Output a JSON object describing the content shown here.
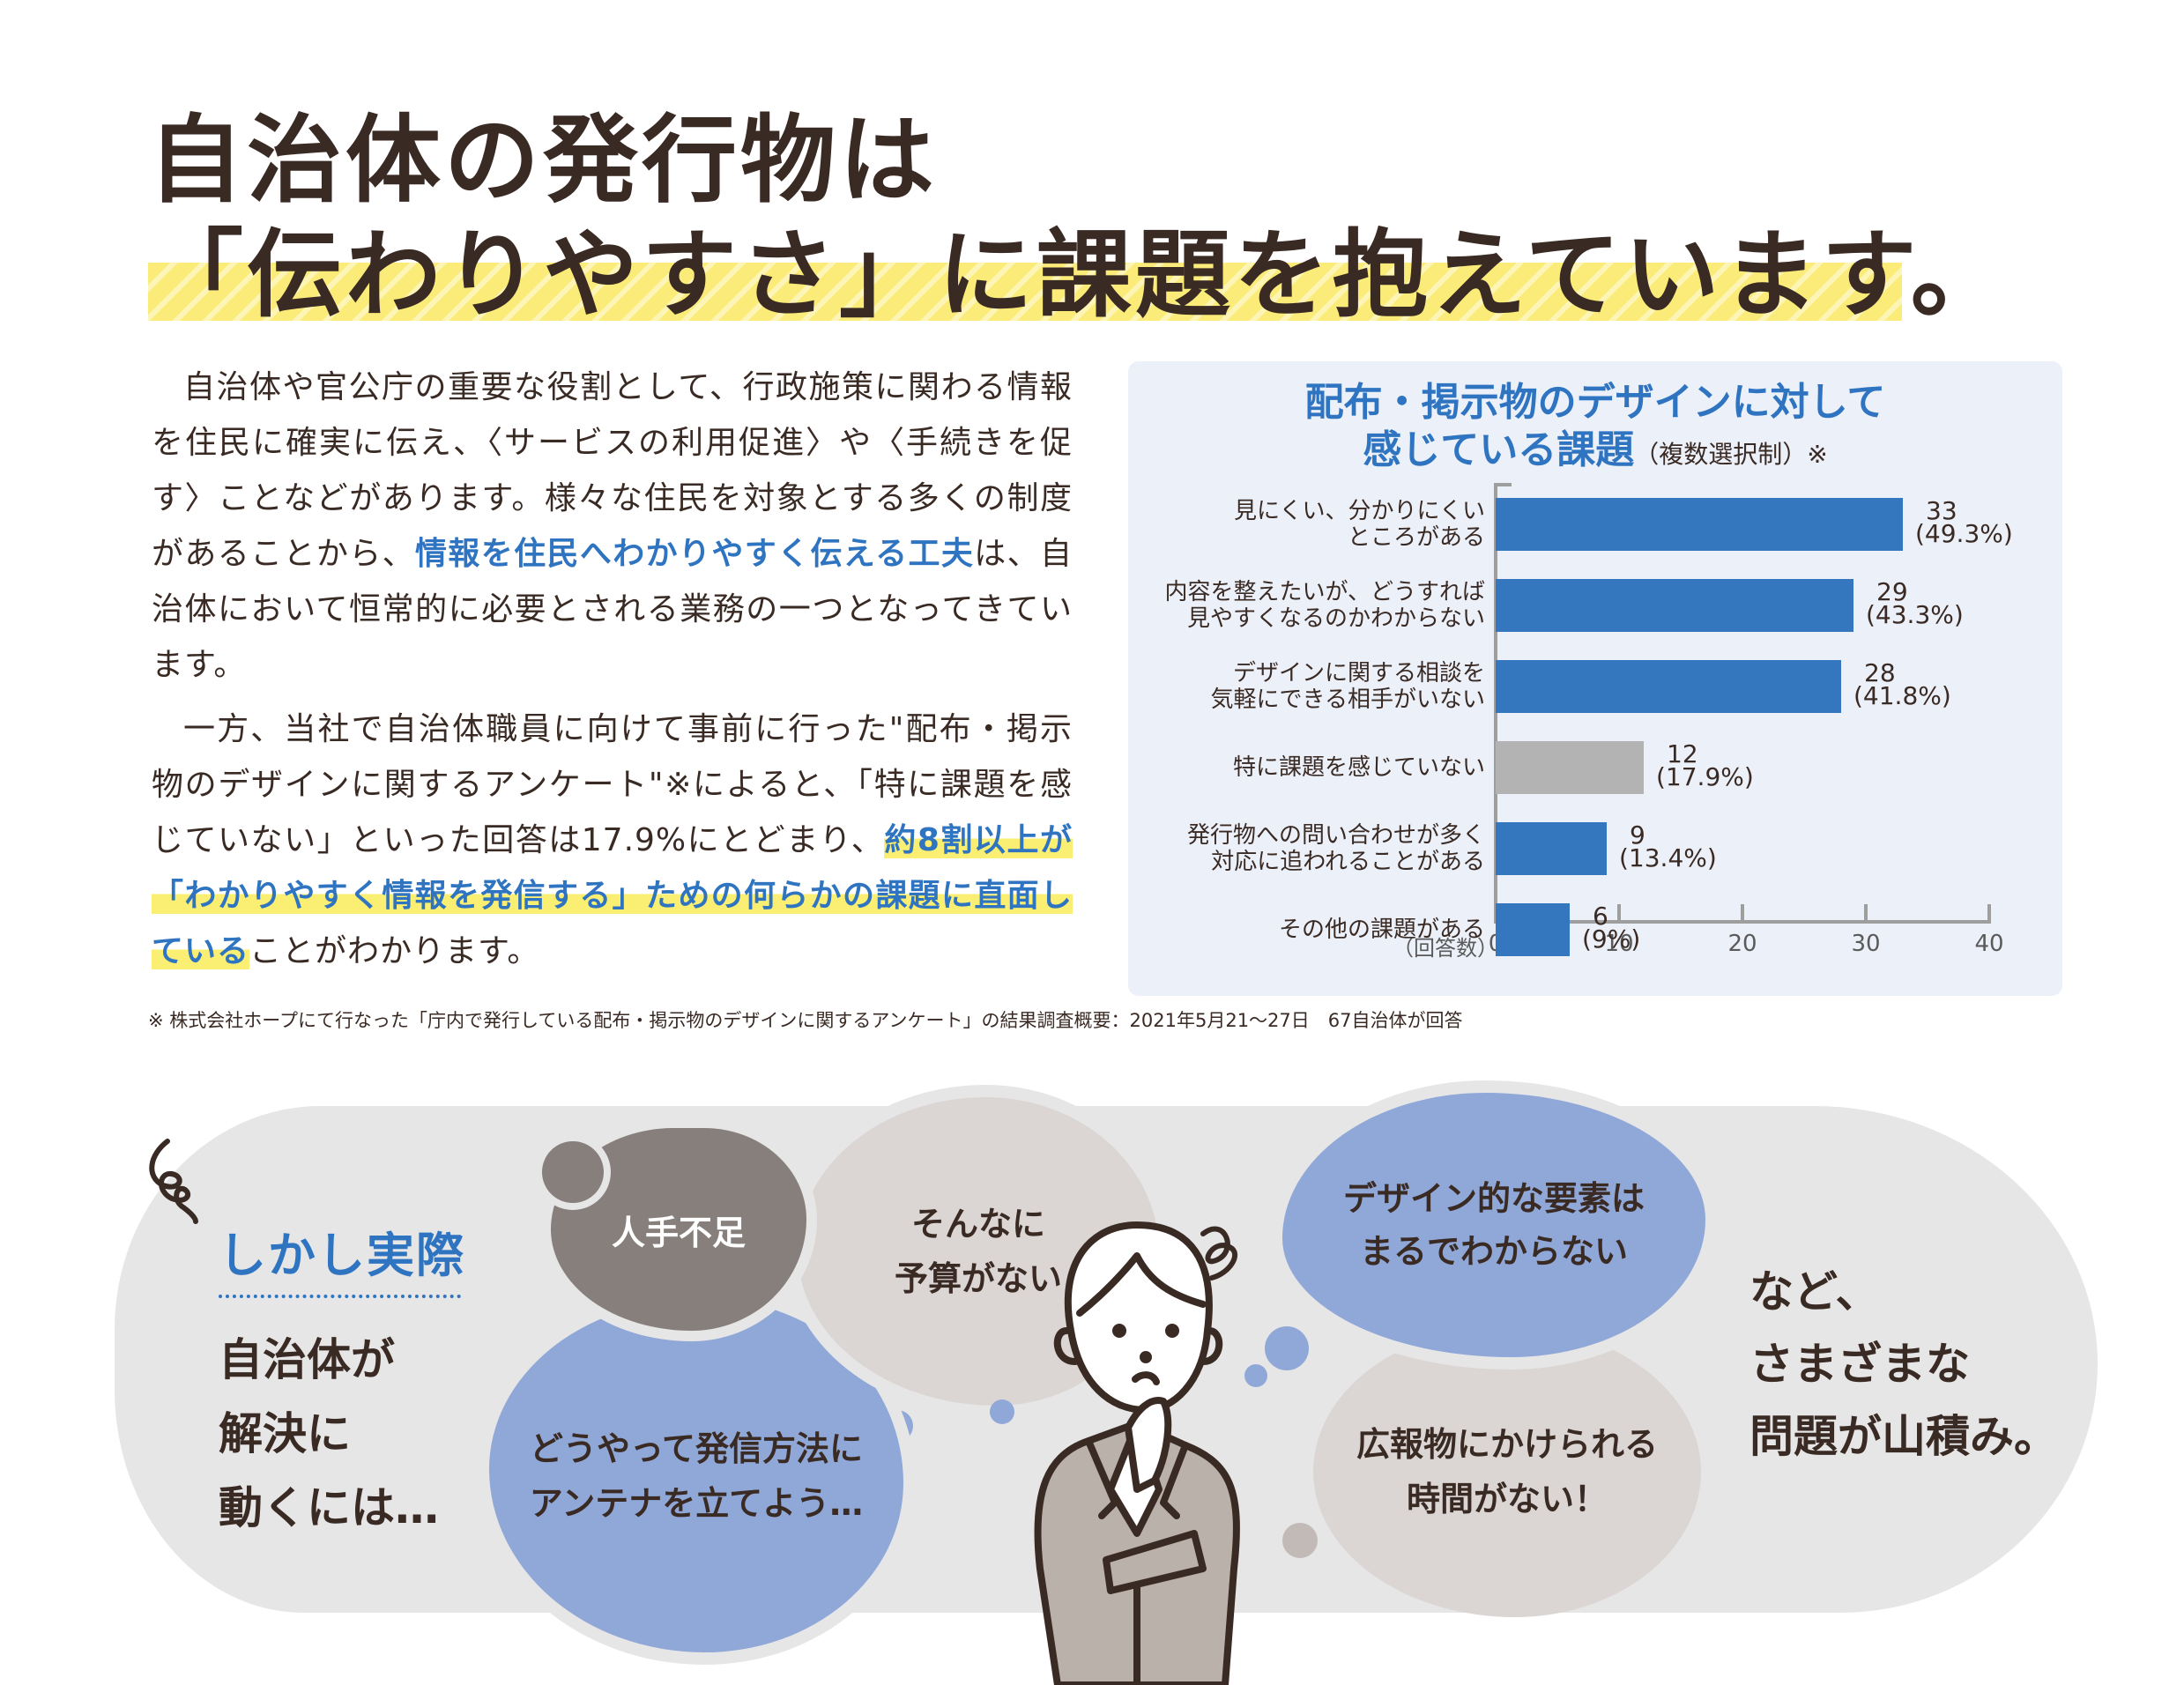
{
  "headline": {
    "line1": "自治体の発行物は",
    "line2": "「伝わりやすさ」に課題を抱えています。"
  },
  "body": {
    "p1_a": "自治体や官公庁の重要な役割として、行政施策に関わる情報を住民に確実に伝え、〈サービスの利用促進〉や〈手続きを促す〉ことなどがあります。様々な住民を対象とする多くの制度があることから、",
    "p1_highlight": "情報を住民へわかりやすく伝える工夫",
    "p1_b": "は、自治体において恒常的に必要とされる業務の一つとなってきています。",
    "p2_a": "一方、当社で自治体職員に向けて事前に行った\"配布・掲示物のデザインに関するアンケート\"※によると、「特に課題を感じていない」といった回答は17.9%にとどまり、",
    "p2_highlight": "約8割以上が「わかりやすく情報を発信する」ための何らかの課題に直面している",
    "p2_b": "ことがわかります。"
  },
  "chart_data": {
    "type": "bar",
    "orientation": "horizontal",
    "title": "配布・掲示物のデザインに対して感じている課題",
    "title_line1": "配布・掲示物のデザインに対して",
    "title_line2": "感じている課題",
    "subtitle": "（複数選択制）※",
    "xlabel": "（回答数）",
    "ylabel": "",
    "xlim": [
      0,
      40
    ],
    "xticks": [
      "0",
      "10",
      "20",
      "30",
      "40"
    ],
    "grid": false,
    "legend": null,
    "categories": [
      "見にくい、分かりにくいところがある",
      "内容を整えたいが、どうすれば見やすくなるのかわからない",
      "デザインに関する相談を気軽にできる相手がいない",
      "特に課題を感じていない",
      "発行物への問い合わせが多く対応に追われることがある",
      "その他の課題がある"
    ],
    "values": [
      33,
      29,
      28,
      12,
      9,
      6
    ],
    "percents": [
      "(49.3%)",
      "(43.3%)",
      "(41.8%)",
      "(17.9%)",
      "(13.4%)",
      "(9%)"
    ],
    "colors": [
      "#3577be",
      "#3577be",
      "#3577be",
      "#b3b3b3",
      "#3577be",
      "#3577be"
    ],
    "rows": [
      {
        "label1": "見にくい、分かりにくい",
        "label2": "ところがある",
        "value": "33",
        "percent": "(49.3%)"
      },
      {
        "label1": "内容を整えたいが、どうすれば",
        "label2": "見やすくなるのかわからない",
        "value": "29",
        "percent": "(43.3%)"
      },
      {
        "label1": "デザインに関する相談を",
        "label2": "気軽にできる相手がいない",
        "value": "28",
        "percent": "(41.8%)"
      },
      {
        "label1": "特に課題を感じていない",
        "label2": "",
        "value": "12",
        "percent": "(17.9%)"
      },
      {
        "label1": "発行物への問い合わせが多く",
        "label2": "対応に追われることがある",
        "value": "9",
        "percent": "(13.4%)"
      },
      {
        "label1": "その他の課題がある",
        "label2": "",
        "value": "6",
        "percent": "(9%)"
      }
    ]
  },
  "footnote": "※ 株式会社ホープにて行なった「庁内で発行している配布・掲示物のデザインに関するアンケート」の結果調査概要：2021年5月21〜27日　67自治体が回答",
  "illustration": {
    "lead_blue": "しかし実際",
    "lead_lines": [
      "自治体が",
      "解決に",
      "動くには…"
    ],
    "bubbles": {
      "staff": "人手不足",
      "budget": [
        "そんなに",
        "予算がない"
      ],
      "antenna": [
        "どうやって発信方法に",
        "アンテナを立てよう…"
      ],
      "design": [
        "デザイン的な要素は",
        "まるでわからない"
      ],
      "time": [
        "広報物にかけられる",
        "時間がない！"
      ]
    },
    "tail_lines": [
      "など、",
      "さまざまな",
      "問題が山積み。"
    ]
  },
  "colors": {
    "text": "#3a2a24",
    "accent_blue": "#2f74c0",
    "bar_blue": "#3577be",
    "bar_gray": "#b3b3b3",
    "highlight_yellow": "#fbef73",
    "panel_bg": "#ecf0f9",
    "blob_bg": "#e6e6e7"
  }
}
